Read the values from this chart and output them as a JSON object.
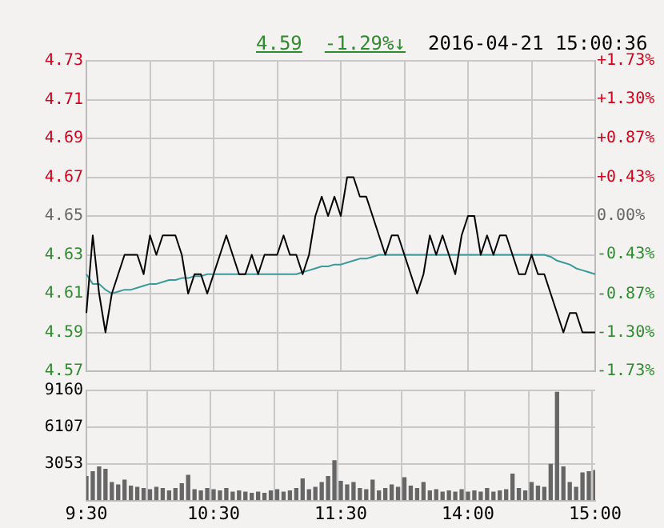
{
  "chart_data": [
    {
      "type": "line",
      "annotations": [
        "4.59",
        "-1.29%↓",
        "2016-04-21 15:00:36"
      ],
      "categories": [
        null,
        null,
        null,
        null,
        null,
        null,
        null,
        null,
        null,
        null,
        null,
        null,
        null,
        null,
        null,
        null,
        null,
        null,
        null,
        null,
        null,
        null,
        null,
        null,
        null,
        null,
        null,
        null,
        null,
        null,
        null,
        null,
        null,
        null,
        null,
        null,
        null,
        null,
        null,
        null,
        null,
        null,
        null,
        null,
        null,
        null,
        null,
        null,
        null,
        null,
        null,
        null,
        null,
        null,
        null,
        null,
        null,
        null,
        null,
        null,
        null,
        null,
        null,
        null,
        null,
        null,
        null,
        null,
        null,
        null,
        null,
        null,
        null,
        null,
        null,
        null,
        null,
        null,
        null,
        null,
        null
      ],
      "series": [
        {
          "color": "#000000",
          "values": [
            4.6,
            4.64,
            4.61,
            4.59,
            4.61,
            4.62,
            4.63,
            4.63,
            4.63,
            4.62,
            4.64,
            4.63,
            4.64,
            4.64,
            4.64,
            4.63,
            4.61,
            4.62,
            4.62,
            4.61,
            4.62,
            4.63,
            4.64,
            4.63,
            4.62,
            4.62,
            4.63,
            4.62,
            4.63,
            4.63,
            4.63,
            4.64,
            4.63,
            4.63,
            4.62,
            4.63,
            4.65,
            4.66,
            4.65,
            4.66,
            4.65,
            4.67,
            4.67,
            4.66,
            4.66,
            4.65,
            4.64,
            4.63,
            4.64,
            4.64,
            4.63,
            4.62,
            4.61,
            4.62,
            4.64,
            4.63,
            4.64,
            4.63,
            4.62,
            4.64,
            4.65,
            4.65,
            4.63,
            4.64,
            4.63,
            4.64,
            4.64,
            4.63,
            4.62,
            4.62,
            4.63,
            4.62,
            4.62,
            4.61,
            4.6,
            4.59,
            4.6,
            4.6,
            4.59,
            4.59,
            4.59
          ]
        },
        {
          "color": "#3a9a9a",
          "values": [
            4.62,
            4.615,
            4.615,
            4.612,
            4.61,
            4.611,
            4.612,
            4.612,
            4.613,
            4.614,
            4.615,
            4.615,
            4.616,
            4.617,
            4.617,
            4.618,
            4.618,
            4.619,
            4.619,
            4.62,
            4.62,
            4.62,
            4.62,
            4.62,
            4.62,
            4.62,
            4.62,
            4.62,
            4.62,
            4.62,
            4.62,
            4.62,
            4.62,
            4.62,
            4.621,
            4.622,
            4.623,
            4.624,
            4.624,
            4.625,
            4.625,
            4.626,
            4.627,
            4.628,
            4.628,
            4.629,
            4.63,
            4.63,
            4.63,
            4.63,
            4.63,
            4.63,
            4.63,
            4.63,
            4.63,
            4.63,
            4.63,
            4.63,
            4.63,
            4.63,
            4.63,
            4.63,
            4.63,
            4.63,
            4.63,
            4.63,
            4.63,
            4.63,
            4.63,
            4.63,
            4.63,
            4.63,
            4.63,
            4.629,
            4.627,
            4.626,
            4.625,
            4.623,
            4.622,
            4.621,
            4.62
          ]
        }
      ],
      "ylim": [
        4.57,
        4.73
      ],
      "yticks": [
        4.57,
        4.59,
        4.61,
        4.63,
        4.65,
        4.67,
        4.69,
        4.71,
        4.73
      ],
      "y2lim": [
        -1.73,
        1.73
      ],
      "y2ticks": [
        {
          "value": -1.73,
          "label": "-1.73%"
        },
        {
          "value": -1.3,
          "label": "-1.30%"
        },
        {
          "value": -0.87,
          "label": "-0.87%"
        },
        {
          "value": -0.43,
          "label": "-0.43%"
        },
        {
          "value": 0,
          "label": "0.00%"
        },
        {
          "value": 0.43,
          "label": "+0.43%"
        },
        {
          "value": 0.87,
          "label": "+0.87%"
        },
        {
          "value": 1.3,
          "label": "+1.30%"
        },
        {
          "value": 1.73,
          "label": "+1.73%"
        }
      ],
      "tick_labels": "y",
      "grid": true,
      "marker": "none",
      "line_style": "solid"
    },
    {
      "type": "bar",
      "color": "#666666",
      "categories": [
        "9:30",
        null,
        null,
        null,
        null,
        null,
        null,
        null,
        null,
        null,
        null,
        null,
        null,
        null,
        null,
        null,
        null,
        null,
        null,
        null,
        "10:30",
        null,
        null,
        null,
        null,
        null,
        null,
        null,
        null,
        null,
        null,
        null,
        null,
        null,
        null,
        null,
        null,
        null,
        null,
        null,
        "11:30",
        null,
        null,
        null,
        null,
        null,
        null,
        null,
        null,
        null,
        null,
        null,
        null,
        null,
        null,
        null,
        null,
        null,
        null,
        null,
        "14:00",
        null,
        null,
        null,
        null,
        null,
        null,
        null,
        null,
        null,
        null,
        null,
        null,
        null,
        null,
        null,
        null,
        null,
        null,
        null,
        "15:00"
      ],
      "values": [
        2000,
        2400,
        2800,
        2600,
        1500,
        1300,
        1700,
        1200,
        1100,
        1000,
        900,
        1100,
        1000,
        800,
        1000,
        1400,
        2100,
        900,
        800,
        1000,
        900,
        800,
        1000,
        700,
        800,
        700,
        600,
        700,
        600,
        800,
        900,
        700,
        800,
        1000,
        1800,
        900,
        1100,
        1500,
        2000,
        3300,
        1600,
        1300,
        1500,
        1000,
        900,
        1700,
        800,
        1000,
        1300,
        1100,
        1900,
        1200,
        1000,
        1500,
        800,
        900,
        700,
        800,
        700,
        900,
        700,
        800,
        700,
        1000,
        700,
        800,
        900,
        2200,
        1000,
        800,
        1500,
        1200,
        1100,
        3000,
        9000,
        2800,
        1500,
        1100,
        2300,
        2400,
        2500
      ],
      "ylim": [
        0,
        9160
      ],
      "yticks": [
        {
          "value": 0,
          "label": null
        },
        3053,
        6107,
        9160
      ],
      "grid": true
    }
  ]
}
